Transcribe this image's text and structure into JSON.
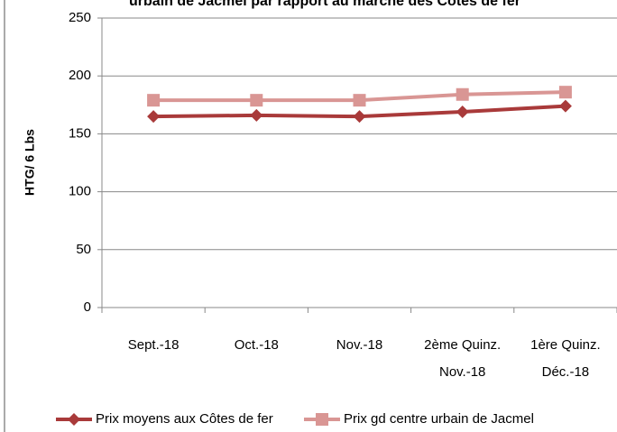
{
  "chart_data": {
    "type": "line",
    "title": "urbain de Jacmel par rapport au marché des Côtes de fer",
    "y_label": "HTG/ 6 Lbs",
    "categories": [
      [
        "Sept.-18"
      ],
      [
        "Oct.-18"
      ],
      [
        "Nov.-18"
      ],
      [
        "2ème   Quinz.",
        "Nov.-18"
      ],
      [
        "1ère   Quinz.",
        "Déc.-18"
      ]
    ],
    "series": [
      {
        "name": "Prix moyens aux Côtes de fer",
        "color": "#a93a3a",
        "marker": "diamond",
        "values": [
          165,
          166,
          165,
          169,
          174
        ]
      },
      {
        "name": "Prix gd centre urbain de Jacmel",
        "color": "#d99694",
        "marker": "square",
        "values": [
          179,
          179,
          179,
          184,
          186
        ]
      }
    ],
    "ylim": [
      0,
      250
    ],
    "yticks": [
      0,
      50,
      100,
      150,
      200,
      250
    ],
    "grid": true
  }
}
